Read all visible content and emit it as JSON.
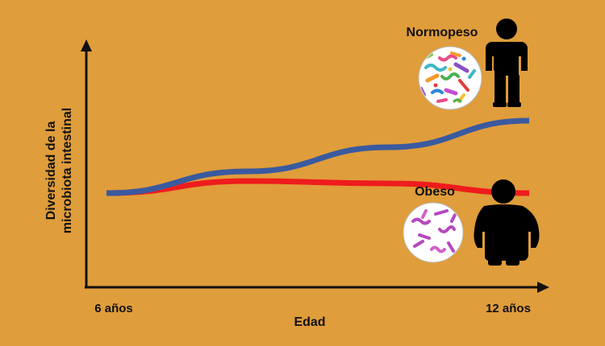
{
  "colors": {
    "background": "#e09d3b",
    "normopeso_line": "#3a5aa0",
    "obeso_line": "#ee1c1c",
    "axis": "#111111"
  },
  "chart_data": {
    "type": "line",
    "xlabel": "Edad",
    "ylabel_line1": "Diversidad de la",
    "ylabel_line2": "microbiota intestinal",
    "x_tick_labels": [
      "6 años",
      "12 años"
    ],
    "xlim": [
      6,
      12
    ],
    "ylim": [
      0,
      10
    ],
    "grid": false,
    "series": [
      {
        "name": "Normopeso",
        "color": "#3a5aa0",
        "x": [
          6,
          8,
          10,
          12
        ],
        "values": [
          3.9,
          4.8,
          5.8,
          6.9
        ]
      },
      {
        "name": "Obeso",
        "color": "#ee1c1c",
        "x": [
          6,
          8,
          10,
          12
        ],
        "values": [
          3.9,
          4.4,
          4.3,
          3.9
        ]
      }
    ]
  },
  "icons": {
    "normopeso_figure": "slim-person-backpack-icon",
    "obeso_figure": "obese-person-icon",
    "diverse_bacteria": "diverse-bacteria-circle-icon",
    "few_bacteria": "low-diversity-bacteria-circle-icon"
  }
}
